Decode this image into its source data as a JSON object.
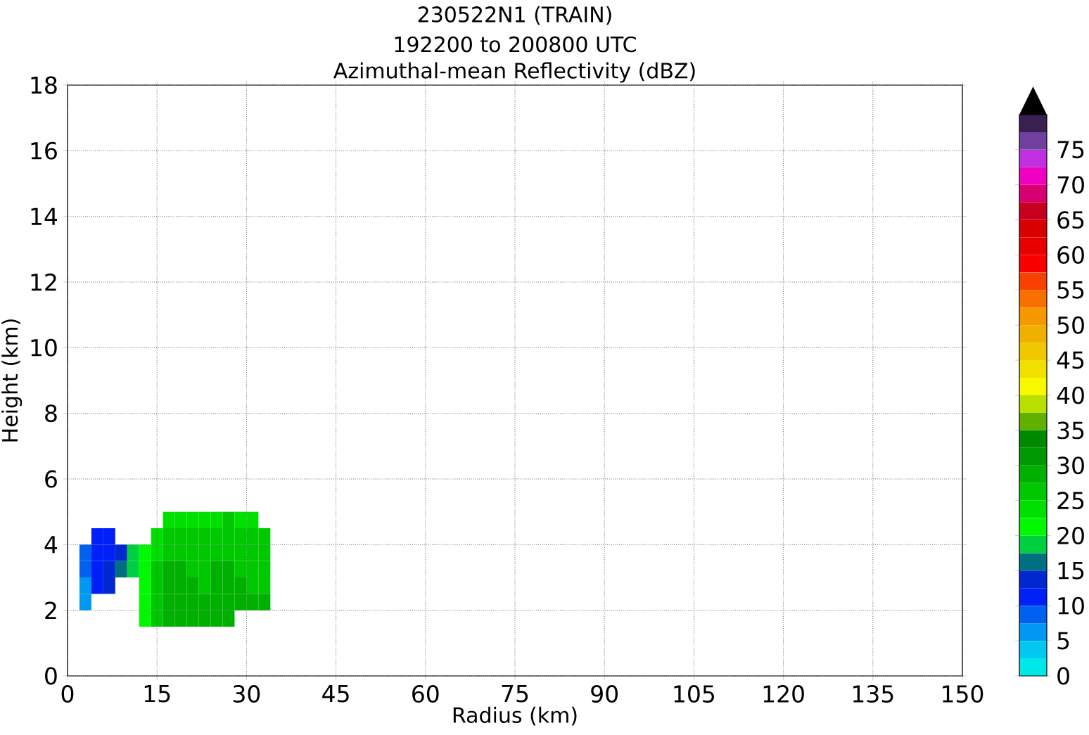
{
  "chart_data": {
    "type": "heatmap",
    "title": "230522N1 (TRAIN)",
    "subtitle": "192200 to 200800 UTC",
    "annotations": [
      "Azimuthal-mean Reflectivity (dBZ)"
    ],
    "xlabel": "Radius (km)",
    "ylabel": "Height (km)",
    "x": [
      3,
      5,
      7,
      9,
      11,
      13,
      15,
      17,
      19,
      21,
      23,
      25,
      27,
      29,
      31,
      33
    ],
    "y": [
      4.75,
      4.25,
      3.75,
      3.25,
      2.75,
      2.25,
      1.75
    ],
    "cells": [
      [
        null,
        null,
        null,
        null,
        null,
        null,
        null,
        24,
        24,
        24,
        24,
        24,
        25,
        24,
        24,
        null
      ],
      [
        null,
        11,
        11,
        null,
        null,
        null,
        24,
        26,
        26,
        26,
        25,
        26,
        26,
        25,
        25,
        26
      ],
      [
        8,
        11,
        11,
        13,
        18,
        21,
        24,
        26,
        27,
        26,
        26,
        27,
        27,
        26,
        26,
        26
      ],
      [
        8,
        11,
        13,
        16,
        19,
        22,
        25,
        28,
        28,
        27,
        27,
        28,
        28,
        27,
        26,
        26
      ],
      [
        7,
        11,
        13,
        null,
        null,
        22,
        25,
        28,
        29,
        28,
        27,
        28,
        28,
        28,
        27,
        27
      ],
      [
        7,
        null,
        null,
        null,
        null,
        22,
        25,
        28,
        29,
        29,
        29,
        28,
        28,
        28,
        28,
        29
      ],
      [
        null,
        null,
        null,
        null,
        null,
        22,
        25,
        28,
        29,
        29,
        29,
        29,
        29,
        null,
        null,
        null
      ]
    ],
    "clim": [
      0,
      80
    ],
    "cticks": [
      0,
      5,
      10,
      15,
      20,
      25,
      30,
      35,
      40,
      45,
      50,
      55,
      60,
      65,
      70,
      75
    ],
    "colors": [
      "#00e8e8",
      "#00c8f0",
      "#0098f0",
      "#0060f0",
      "#0020f8",
      "#0028d0",
      "#007080",
      "#00d040",
      "#00f800",
      "#00e000",
      "#00c800",
      "#00b000",
      "#009800",
      "#008800",
      "#60b000",
      "#b8e000",
      "#f8f800",
      "#f0e000",
      "#f0c800",
      "#f0b000",
      "#f89800",
      "#f87000",
      "#f84000",
      "#f80000",
      "#e80000",
      "#d80000",
      "#c80020",
      "#d80070",
      "#f000c0",
      "#c030e0",
      "#7040a0",
      "#3a2050"
    ],
    "xlim": [
      0,
      150
    ],
    "xticks": [
      0,
      15,
      30,
      45,
      60,
      75,
      90,
      105,
      120,
      135,
      150
    ],
    "ylim": [
      0,
      18
    ],
    "yticks": [
      0,
      2,
      4,
      6,
      8,
      10,
      12,
      14,
      16,
      18
    ],
    "grid": true
  }
}
